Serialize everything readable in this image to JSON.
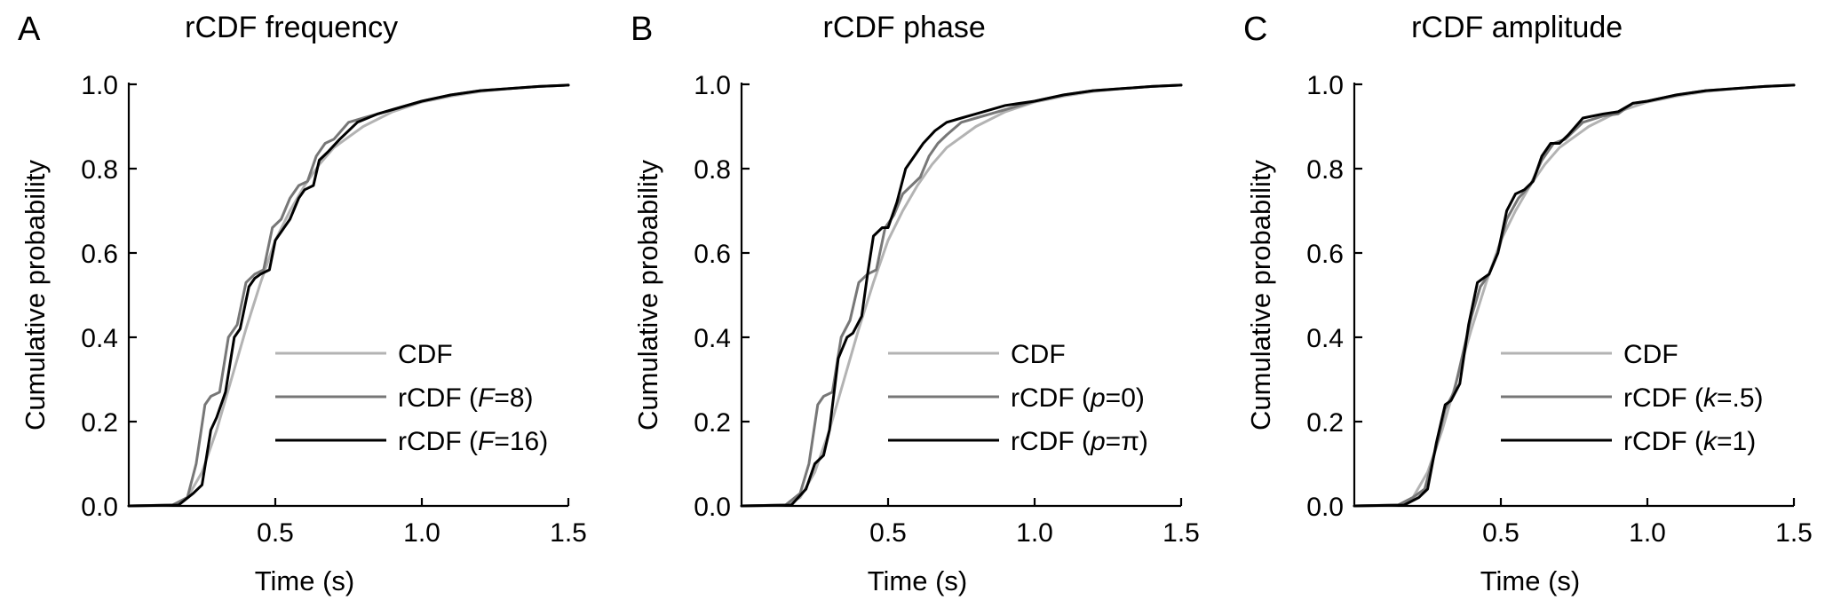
{
  "chart_data": [
    {
      "type": "line",
      "panel": "A",
      "title": "rCDF frequency",
      "xlabel": "Time (s)",
      "ylabel": "Cumulative probability",
      "xlim": [
        0,
        1.5
      ],
      "ylim": [
        0,
        1
      ],
      "xticks": [
        0.5,
        1.0,
        1.5
      ],
      "xtick_labels": [
        "0.5",
        "1.0",
        "1.5"
      ],
      "yticks": [
        0,
        0.2,
        0.4,
        0.6,
        0.8,
        1.0
      ],
      "ytick_labels": [
        "0.0",
        "0.2",
        "0.4",
        "0.6",
        "0.8",
        "1.0"
      ],
      "grid": false,
      "legend": "center-right",
      "series": [
        {
          "name": "CDF",
          "color": "#b3b3b3",
          "x": [
            0,
            0.15,
            0.2,
            0.25,
            0.3,
            0.35,
            0.4,
            0.45,
            0.5,
            0.55,
            0.6,
            0.65,
            0.7,
            0.8,
            0.9,
            1.0,
            1.1,
            1.2,
            1.3,
            1.4,
            1.5
          ],
          "y": [
            0,
            0.002,
            0.02,
            0.08,
            0.18,
            0.3,
            0.42,
            0.53,
            0.63,
            0.7,
            0.76,
            0.81,
            0.85,
            0.9,
            0.935,
            0.958,
            0.972,
            0.983,
            0.99,
            0.995,
            0.998
          ]
        },
        {
          "name": "rCDF (",
          "param": "F",
          "value": "=8)",
          "color": "#777777",
          "x": [
            0,
            0.15,
            0.2,
            0.23,
            0.26,
            0.28,
            0.31,
            0.34,
            0.37,
            0.4,
            0.43,
            0.46,
            0.49,
            0.52,
            0.55,
            0.58,
            0.61,
            0.64,
            0.67,
            0.7,
            0.75,
            0.8,
            0.9,
            1.0,
            1.1,
            1.2,
            1.3,
            1.4,
            1.5
          ],
          "y": [
            0,
            0.002,
            0.02,
            0.1,
            0.24,
            0.26,
            0.27,
            0.4,
            0.43,
            0.53,
            0.55,
            0.56,
            0.66,
            0.68,
            0.73,
            0.76,
            0.77,
            0.83,
            0.86,
            0.87,
            0.91,
            0.92,
            0.94,
            0.96,
            0.975,
            0.985,
            0.99,
            0.995,
            0.998
          ]
        },
        {
          "name": "rCDF (",
          "param": "F",
          "value": "=16)",
          "color": "#000000",
          "x": [
            0,
            0.17,
            0.22,
            0.25,
            0.28,
            0.3,
            0.33,
            0.36,
            0.38,
            0.41,
            0.43,
            0.45,
            0.48,
            0.5,
            0.53,
            0.55,
            0.58,
            0.6,
            0.63,
            0.65,
            0.68,
            0.72,
            0.78,
            0.85,
            0.9,
            1.0,
            1.1,
            1.2,
            1.3,
            1.4,
            1.5
          ],
          "y": [
            0,
            0.002,
            0.03,
            0.05,
            0.18,
            0.21,
            0.27,
            0.4,
            0.42,
            0.52,
            0.54,
            0.55,
            0.56,
            0.63,
            0.66,
            0.68,
            0.73,
            0.75,
            0.76,
            0.82,
            0.84,
            0.87,
            0.91,
            0.93,
            0.94,
            0.96,
            0.975,
            0.985,
            0.99,
            0.995,
            0.998
          ]
        }
      ]
    },
    {
      "type": "line",
      "panel": "B",
      "title": "rCDF phase",
      "xlabel": "Time (s)",
      "ylabel": "Cumulative probability",
      "xlim": [
        0,
        1.5
      ],
      "ylim": [
        0,
        1
      ],
      "xticks": [
        0.5,
        1.0,
        1.5
      ],
      "xtick_labels": [
        "0.5",
        "1.0",
        "1.5"
      ],
      "yticks": [
        0,
        0.2,
        0.4,
        0.6,
        0.8,
        1.0
      ],
      "ytick_labels": [
        "0.0",
        "0.2",
        "0.4",
        "0.6",
        "0.8",
        "1.0"
      ],
      "grid": false,
      "legend": "center-right",
      "series": [
        {
          "name": "CDF",
          "color": "#b3b3b3",
          "x": [
            0,
            0.15,
            0.2,
            0.25,
            0.3,
            0.35,
            0.4,
            0.45,
            0.5,
            0.55,
            0.6,
            0.65,
            0.7,
            0.8,
            0.9,
            1.0,
            1.1,
            1.2,
            1.3,
            1.4,
            1.5
          ],
          "y": [
            0,
            0.002,
            0.02,
            0.08,
            0.18,
            0.3,
            0.42,
            0.53,
            0.63,
            0.7,
            0.76,
            0.81,
            0.85,
            0.9,
            0.935,
            0.958,
            0.972,
            0.983,
            0.99,
            0.995,
            0.998
          ]
        },
        {
          "name": "rCDF (",
          "param": "p",
          "value": "=0)",
          "color": "#777777",
          "x": [
            0,
            0.15,
            0.2,
            0.23,
            0.26,
            0.28,
            0.31,
            0.34,
            0.37,
            0.4,
            0.43,
            0.46,
            0.49,
            0.52,
            0.55,
            0.58,
            0.61,
            0.64,
            0.67,
            0.7,
            0.75,
            0.8,
            0.9,
            1.0,
            1.1,
            1.2,
            1.3,
            1.4,
            1.5
          ],
          "y": [
            0,
            0.002,
            0.03,
            0.1,
            0.24,
            0.26,
            0.27,
            0.4,
            0.44,
            0.53,
            0.55,
            0.56,
            0.66,
            0.69,
            0.74,
            0.76,
            0.78,
            0.83,
            0.86,
            0.88,
            0.91,
            0.92,
            0.94,
            0.96,
            0.975,
            0.985,
            0.99,
            0.995,
            0.998
          ]
        },
        {
          "name": "rCDF (",
          "param": "p",
          "value": "=π)",
          "color": "#000000",
          "x": [
            0,
            0.17,
            0.22,
            0.25,
            0.28,
            0.3,
            0.33,
            0.36,
            0.38,
            0.41,
            0.43,
            0.45,
            0.48,
            0.5,
            0.53,
            0.56,
            0.58,
            0.62,
            0.66,
            0.7,
            0.75,
            0.8,
            0.9,
            1.0,
            1.1,
            1.2,
            1.3,
            1.4,
            1.5
          ],
          "y": [
            0,
            0.002,
            0.04,
            0.1,
            0.12,
            0.18,
            0.35,
            0.4,
            0.41,
            0.45,
            0.55,
            0.64,
            0.66,
            0.66,
            0.72,
            0.8,
            0.82,
            0.86,
            0.89,
            0.91,
            0.92,
            0.93,
            0.95,
            0.96,
            0.975,
            0.985,
            0.99,
            0.995,
            0.998
          ]
        }
      ]
    },
    {
      "type": "line",
      "panel": "C",
      "title": "rCDF amplitude",
      "xlabel": "Time (s)",
      "ylabel": "Cumulative probability",
      "xlim": [
        0,
        1.5
      ],
      "ylim": [
        0,
        1
      ],
      "xticks": [
        0.5,
        1.0,
        1.5
      ],
      "xtick_labels": [
        "0.5",
        "1.0",
        "1.5"
      ],
      "yticks": [
        0,
        0.2,
        0.4,
        0.6,
        0.8,
        1.0
      ],
      "ytick_labels": [
        "0.0",
        "0.2",
        "0.4",
        "0.6",
        "0.8",
        "1.0"
      ],
      "grid": false,
      "legend": "center-right",
      "series": [
        {
          "name": "CDF",
          "color": "#b3b3b3",
          "x": [
            0,
            0.15,
            0.2,
            0.25,
            0.3,
            0.35,
            0.4,
            0.45,
            0.5,
            0.55,
            0.6,
            0.65,
            0.7,
            0.8,
            0.9,
            1.0,
            1.1,
            1.2,
            1.3,
            1.4,
            1.5
          ],
          "y": [
            0,
            0.002,
            0.02,
            0.08,
            0.18,
            0.3,
            0.42,
            0.53,
            0.63,
            0.7,
            0.76,
            0.81,
            0.85,
            0.9,
            0.935,
            0.958,
            0.972,
            0.983,
            0.99,
            0.995,
            0.998
          ]
        },
        {
          "name": "rCDF (",
          "param": "k",
          "value": "=.5)",
          "color": "#777777",
          "x": [
            0,
            0.15,
            0.2,
            0.24,
            0.28,
            0.31,
            0.34,
            0.37,
            0.4,
            0.43,
            0.46,
            0.49,
            0.52,
            0.56,
            0.6,
            0.64,
            0.68,
            0.72,
            0.78,
            0.85,
            0.9,
            0.95,
            1.0,
            1.1,
            1.2,
            1.3,
            1.4,
            1.5
          ],
          "y": [
            0,
            0.002,
            0.02,
            0.04,
            0.14,
            0.23,
            0.27,
            0.36,
            0.45,
            0.52,
            0.55,
            0.6,
            0.68,
            0.73,
            0.76,
            0.82,
            0.86,
            0.87,
            0.91,
            0.925,
            0.93,
            0.955,
            0.96,
            0.975,
            0.985,
            0.99,
            0.995,
            0.998
          ]
        },
        {
          "name": "rCDF (",
          "param": "k",
          "value": "=1)",
          "color": "#000000",
          "x": [
            0,
            0.17,
            0.22,
            0.25,
            0.28,
            0.31,
            0.33,
            0.36,
            0.39,
            0.42,
            0.44,
            0.46,
            0.49,
            0.52,
            0.55,
            0.58,
            0.61,
            0.64,
            0.67,
            0.7,
            0.73,
            0.78,
            0.85,
            0.9,
            0.95,
            1.0,
            1.1,
            1.2,
            1.3,
            1.4,
            1.5
          ],
          "y": [
            0,
            0.002,
            0.02,
            0.04,
            0.15,
            0.24,
            0.25,
            0.29,
            0.43,
            0.53,
            0.54,
            0.55,
            0.6,
            0.7,
            0.74,
            0.75,
            0.77,
            0.83,
            0.86,
            0.86,
            0.88,
            0.92,
            0.93,
            0.935,
            0.955,
            0.96,
            0.975,
            0.985,
            0.99,
            0.995,
            0.998
          ]
        }
      ]
    }
  ]
}
